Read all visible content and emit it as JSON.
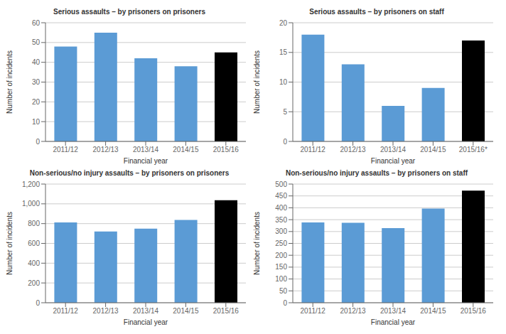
{
  "chart_data": [
    {
      "type": "bar",
      "title": "Serious assaults – by prisoners on prisoners",
      "categories": [
        "2011/12",
        "2012/13",
        "2013/14",
        "2014/15",
        "2015/16"
      ],
      "values": [
        48,
        55,
        42,
        38,
        45
      ],
      "colors": [
        "#5B9BD5",
        "#5B9BD5",
        "#5B9BD5",
        "#5B9BD5",
        "#000000"
      ],
      "ylim": [
        0,
        60
      ],
      "yticks": [
        0,
        10,
        20,
        30,
        40,
        50,
        60
      ],
      "ylabel": "Number of incidents",
      "xlabel": "Financial year",
      "grid": true
    },
    {
      "type": "bar",
      "title": "Serious assaults – by prisoners on staff",
      "categories": [
        "2011/12",
        "2012/13",
        "2013/14",
        "2014/15",
        "2015/16*"
      ],
      "values": [
        18,
        13,
        6,
        9,
        17
      ],
      "colors": [
        "#5B9BD5",
        "#5B9BD5",
        "#5B9BD5",
        "#5B9BD5",
        "#000000"
      ],
      "ylim": [
        0,
        20
      ],
      "yticks": [
        0,
        5,
        10,
        15,
        20
      ],
      "ylabel": "Number of incidents",
      "xlabel": "Financial year",
      "grid": true
    },
    {
      "type": "bar",
      "title": "Non-serious/no injury assaults – by prisoners on prisoners",
      "categories": [
        "2011/12",
        "2012/13",
        "2013/14",
        "2014/15",
        "2015/16"
      ],
      "values": [
        812,
        720,
        750,
        837,
        1037
      ],
      "colors": [
        "#5B9BD5",
        "#5B9BD5",
        "#5B9BD5",
        "#5B9BD5",
        "#000000"
      ],
      "ylim": [
        0,
        1200
      ],
      "yticks": [
        0,
        200,
        400,
        600,
        800,
        {
          "value": 1000,
          "label": "1,000"
        },
        {
          "value": 1200,
          "label": "1,200"
        }
      ],
      "ylabel": "Number of incidents",
      "xlabel": "Financial year",
      "grid": true
    },
    {
      "type": "bar",
      "title": "Non-serious/no injury assaults – by prisoners on staff",
      "categories": [
        "2011/12",
        "2012/13",
        "2013/14",
        "2014/15",
        "2015/16"
      ],
      "values": [
        338,
        337,
        314,
        397,
        472
      ],
      "colors": [
        "#5B9BD5",
        "#5B9BD5",
        "#5B9BD5",
        "#5B9BD5",
        "#000000"
      ],
      "ylim": [
        0,
        500
      ],
      "yticks": [
        0,
        50,
        100,
        150,
        200,
        250,
        300,
        350,
        400,
        450,
        500
      ],
      "ylabel": "Number of incidents",
      "xlabel": "Financial year",
      "grid": true
    }
  ]
}
